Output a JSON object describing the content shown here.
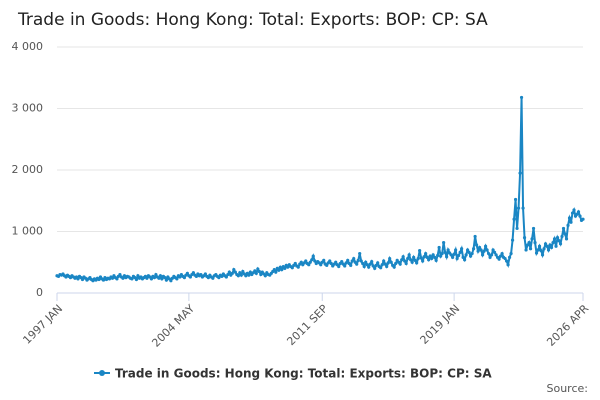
{
  "chart_data": {
    "type": "line",
    "title": "Trade in Goods: Hong Kong: Total: Exports: BOP: CP: SA",
    "source": "Source:",
    "categories": [
      "1997 JAN",
      null,
      null,
      null,
      null,
      null,
      null,
      null,
      null,
      null,
      null,
      null,
      null,
      null,
      null,
      null,
      null,
      null,
      null,
      null,
      null,
      null,
      null,
      null,
      null,
      null,
      null,
      null,
      null,
      null,
      null,
      null,
      null,
      null,
      null,
      null,
      null,
      null,
      null,
      null,
      null,
      null,
      null,
      null,
      null,
      null,
      null,
      null,
      null,
      null,
      null,
      null,
      null,
      null,
      null,
      null,
      null,
      null,
      null,
      null,
      null,
      null,
      null,
      null,
      null,
      null,
      null,
      null,
      null,
      null,
      null,
      null,
      null,
      null,
      null,
      null,
      null,
      null,
      null,
      null,
      null,
      null,
      null,
      null,
      null,
      null,
      null,
      null,
      "2004 MAY",
      null,
      null,
      null,
      null,
      null,
      null,
      null,
      null,
      null,
      null,
      null,
      null,
      null,
      null,
      null,
      null,
      null,
      null,
      null,
      null,
      null,
      null,
      null,
      null,
      null,
      null,
      null,
      null,
      null,
      null,
      null,
      null,
      null,
      null,
      null,
      null,
      null,
      null,
      null,
      null,
      null,
      null,
      null,
      null,
      null,
      null,
      null,
      null,
      null,
      null,
      null,
      null,
      null,
      null,
      null,
      null,
      null,
      null,
      null,
      null,
      null,
      null,
      null,
      null,
      null,
      null,
      null,
      null,
      null,
      null,
      null,
      null,
      null,
      null,
      null,
      null,
      null,
      null,
      null,
      null,
      null,
      null,
      null,
      null,
      null,
      null,
      null,
      null,
      "2011 SEP",
      null,
      null,
      null,
      null,
      null,
      null,
      null,
      null,
      null,
      null,
      null,
      null,
      null,
      null,
      null,
      null,
      null,
      null,
      null,
      null,
      null,
      null,
      null,
      null,
      null,
      null,
      null,
      null,
      null,
      null,
      null,
      null,
      null,
      null,
      null,
      null,
      null,
      null,
      null,
      null,
      null,
      null,
      null,
      null,
      null,
      null,
      null,
      null,
      null,
      null,
      null,
      null,
      null,
      null,
      null,
      null,
      null,
      null,
      null,
      null,
      null,
      null,
      null,
      null,
      null,
      null,
      null,
      null,
      null,
      null,
      null,
      null,
      null,
      null,
      null,
      null,
      null,
      null,
      null,
      null,
      null,
      null,
      null,
      null,
      null,
      null,
      null,
      "2019 JAN",
      null,
      null,
      null,
      null,
      null,
      null,
      null,
      null,
      null,
      null,
      null,
      null,
      null,
      null,
      null,
      null,
      null,
      null,
      null,
      null,
      null,
      null,
      null,
      null,
      null,
      null,
      null,
      null,
      null,
      null,
      null,
      null,
      null,
      null,
      null,
      null,
      null,
      null,
      null,
      null,
      null,
      null,
      null,
      null,
      null,
      null,
      null,
      null,
      null,
      null,
      null,
      null,
      null,
      null,
      null,
      null,
      null,
      null,
      null,
      null,
      null,
      null,
      null,
      null,
      null,
      null,
      null,
      null,
      null,
      null,
      null,
      null,
      null,
      null,
      null,
      null,
      null,
      null,
      null,
      null,
      null,
      null,
      null,
      null,
      null,
      "2026 APR"
    ],
    "series": [
      {
        "name": "Trade in Goods: Hong Kong: Total: Exports: BOP: CP: SA",
        "color": "#1a86c4",
        "values": [
          280,
          270,
          300,
          290,
          310,
          280,
          260,
          290,
          270,
          250,
          280,
          260,
          240,
          260,
          230,
          270,
          250,
          220,
          260,
          240,
          210,
          230,
          250,
          220,
          200,
          230,
          210,
          240,
          220,
          260,
          230,
          210,
          250,
          220,
          240,
          230,
          260,
          240,
          280,
          250,
          230,
          270,
          300,
          260,
          240,
          280,
          250,
          270,
          260,
          240,
          230,
          270,
          250,
          220,
          280,
          240,
          260,
          230,
          250,
          270,
          240,
          280,
          260,
          230,
          270,
          250,
          300,
          260,
          240,
          280,
          230,
          270,
          250,
          210,
          260,
          230,
          200,
          240,
          270,
          250,
          230,
          280,
          260,
          300,
          270,
          250,
          290,
          320,
          280,
          260,
          300,
          330,
          290,
          270,
          310,
          280,
          300,
          260,
          280,
          310,
          270,
          250,
          290,
          260,
          240,
          280,
          300,
          270,
          250,
          290,
          270,
          310,
          280,
          260,
          300,
          340,
          290,
          320,
          380,
          340,
          300,
          280,
          330,
          290,
          350,
          310,
          280,
          320,
          290,
          340,
          300,
          330,
          360,
          320,
          390,
          350,
          300,
          340,
          310,
          280,
          330,
          300,
          290,
          320,
          350,
          380,
          340,
          400,
          370,
          420,
          380,
          430,
          400,
          450,
          420,
          460,
          430,
          410,
          450,
          480,
          440,
          420,
          470,
          500,
          460,
          490,
          520,
          480,
          460,
          500,
          540,
          600,
          520,
          480,
          510,
          490,
          460,
          500,
          530,
          470,
          450,
          490,
          520,
          480,
          440,
          470,
          500,
          460,
          430,
          480,
          510,
          470,
          440,
          490,
          530,
          480,
          450,
          520,
          560,
          500,
          470,
          530,
          640,
          520,
          480,
          430,
          500,
          460,
          420,
          470,
          510,
          440,
          400,
          450,
          490,
          430,
          410,
          460,
          520,
          470,
          430,
          490,
          560,
          500,
          450,
          420,
          480,
          530,
          500,
          470,
          540,
          590,
          520,
          480,
          560,
          620,
          540,
          500,
          580,
          530,
          490,
          560,
          690,
          570,
          520,
          590,
          640,
          580,
          540,
          600,
          560,
          620,
          580,
          530,
          610,
          740,
          600,
          640,
          820,
          660,
          590,
          700,
          650,
          620,
          580,
          630,
          700,
          560,
          610,
          660,
          720,
          580,
          540,
          620,
          700,
          660,
          600,
          640,
          720,
          920,
          780,
          680,
          740,
          700,
          620,
          680,
          760,
          700,
          640,
          580,
          620,
          700,
          660,
          620,
          580,
          550,
          600,
          640,
          580,
          560,
          520,
          460,
          580,
          640,
          860,
          1200,
          1520,
          1050,
          1380,
          1950,
          3180,
          1380,
          900,
          700,
          780,
          820,
          720,
          880,
          1050,
          820,
          650,
          700,
          760,
          690,
          620,
          720,
          800,
          760,
          700,
          780,
          740,
          820,
          880,
          760,
          900,
          850,
          800,
          920,
          1050,
          960,
          880,
          1100,
          1220,
          1150,
          1300,
          1350,
          1250,
          1280,
          1320,
          1250,
          1180,
          1200
        ]
      }
    ],
    "ylim": [
      0,
      4000
    ],
    "yticks": [
      0,
      {
        "value": 1000,
        "label": "1 000"
      },
      {
        "value": 2000,
        "label": "2 000"
      },
      {
        "value": 3000,
        "label": "3 000"
      },
      {
        "value": 4000,
        "label": "4 000"
      }
    ],
    "grid": true
  }
}
